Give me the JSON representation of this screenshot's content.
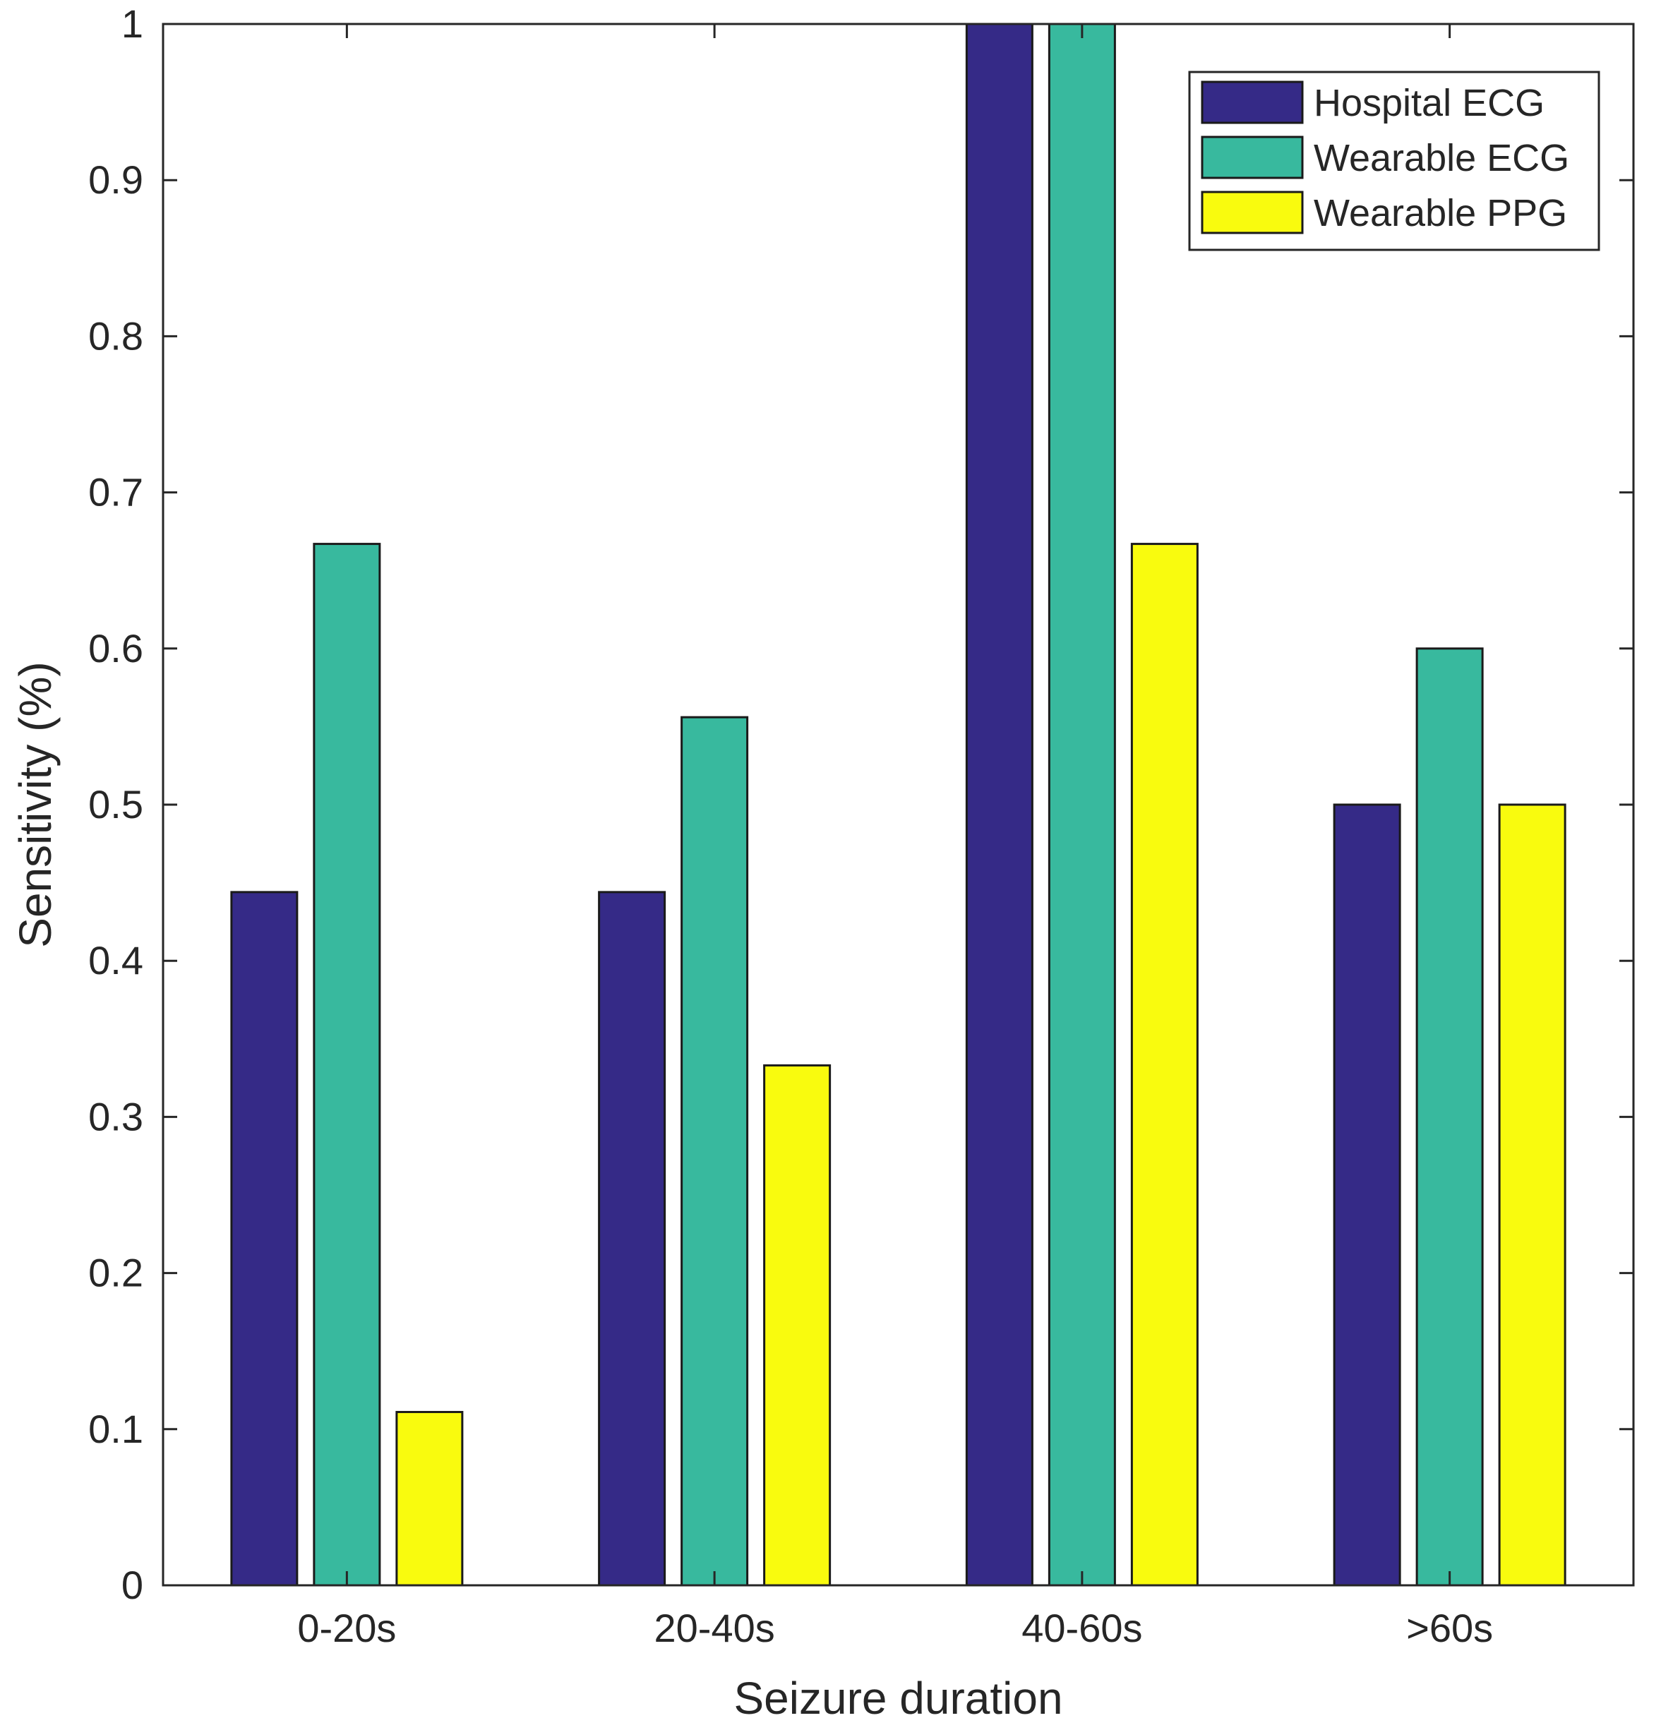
{
  "chart_data": {
    "type": "bar",
    "title": "",
    "xlabel": "Seizure duration",
    "ylabel": "Sensitivity (%)",
    "categories": [
      "0-20s",
      "20-40s",
      "40-60s",
      ">60s"
    ],
    "ylim": [
      0,
      1
    ],
    "yticks": [
      0,
      0.1,
      0.2,
      0.3,
      0.4,
      0.5,
      0.6,
      0.7,
      0.8,
      0.9,
      1
    ],
    "ytick_labels": [
      "0",
      "0.1",
      "0.2",
      "0.3",
      "0.4",
      "0.5",
      "0.6",
      "0.7",
      "0.8",
      "0.9",
      "1"
    ],
    "grid": false,
    "legend_position": "top-right",
    "series": [
      {
        "name": "Hospital ECG",
        "color": "#352a87",
        "values": [
          0.444,
          0.444,
          1.0,
          0.5
        ]
      },
      {
        "name": "Wearable ECG",
        "color": "#38b99e",
        "values": [
          0.667,
          0.556,
          1.0,
          0.6
        ]
      },
      {
        "name": "Wearable PPG",
        "color": "#f9fb0e",
        "values": [
          0.111,
          0.333,
          0.667,
          0.5
        ]
      }
    ]
  }
}
